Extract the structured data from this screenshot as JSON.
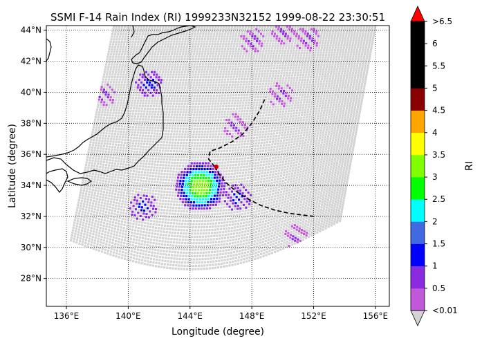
{
  "chart_data": {
    "type": "heatmap",
    "title": "SSMI F-14 Rain Index (RI) 1999233N32152 1999-08-22 23:30:51",
    "xlabel": "Longitude (degree)",
    "ylabel": "Latitude (degree)",
    "xlim": [
      134.7,
      156.9
    ],
    "ylim": [
      26.2,
      44.3
    ],
    "x_ticks": [
      136,
      140,
      144,
      148,
      152,
      156
    ],
    "x_tick_labels": [
      "136°E",
      "140°E",
      "144°E",
      "148°E",
      "152°E",
      "156°E"
    ],
    "y_ticks": [
      28,
      30,
      32,
      34,
      36,
      38,
      40,
      42,
      44
    ],
    "y_tick_labels": [
      "28°N",
      "30°N",
      "32°N",
      "34°N",
      "36°N",
      "38°N",
      "40°N",
      "42°N",
      "44°N"
    ],
    "grid": true,
    "grid_style": "dotted",
    "swath_color": "#d3d3d3",
    "colorbar": {
      "label": "RI",
      "boundaries": [
        0.01,
        0.5,
        1,
        1.5,
        2,
        2.5,
        3,
        3.5,
        4,
        4.5,
        5,
        5.5,
        6,
        6.5
      ],
      "tick_labels": [
        "<0.01",
        "0.5",
        "1",
        "1.5",
        "2",
        "2.5",
        "3",
        "3.5",
        "4",
        "4.5",
        "5",
        "5.5",
        "6",
        ">6.5"
      ],
      "colors": [
        "#c158d9",
        "#8a2be2",
        "#0000ff",
        "#4169e1",
        "#00ffff",
        "#00ff00",
        "#7fff00",
        "#ffff00",
        "#ffa500",
        "#8b0000",
        "#000000",
        "#000000",
        "#000000"
      ],
      "under_color": "#d3d3d3",
      "over_color": "#ff0000"
    },
    "track": {
      "lon": [
        145.6,
        145.9,
        146.3,
        147.0,
        147.8,
        148.6,
        149.5,
        150.4,
        151.2,
        152.0
      ],
      "lat": [
        35.2,
        34.7,
        34.2,
        33.6,
        33.1,
        32.7,
        32.4,
        32.2,
        32.1,
        32.0
      ],
      "lon2": [
        145.6,
        145.2,
        145.3,
        145.9,
        146.7,
        147.4,
        148.0,
        148.5,
        148.9
      ],
      "lat2": [
        35.2,
        35.7,
        36.2,
        36.4,
        36.8,
        37.3,
        38.0,
        38.8,
        39.7
      ],
      "center_lon": 145.7,
      "center_lat": 35.2,
      "center_color": "#cc0000"
    },
    "rain_clusters": [
      {
        "lon": 144.6,
        "lat": 34.0,
        "intensity": "green-core"
      },
      {
        "lon": 147.0,
        "lat": 33.3,
        "intensity": "blue"
      },
      {
        "lon": 150.8,
        "lat": 30.8,
        "intensity": "purple"
      },
      {
        "lon": 140.9,
        "lat": 32.7,
        "intensity": "blue"
      },
      {
        "lon": 138.3,
        "lat": 39.9,
        "intensity": "purple"
      },
      {
        "lon": 141.3,
        "lat": 40.6,
        "intensity": "blue"
      },
      {
        "lon": 146.9,
        "lat": 37.9,
        "intensity": "purple"
      },
      {
        "lon": 149.8,
        "lat": 39.9,
        "intensity": "purple"
      },
      {
        "lon": 151.5,
        "lat": 43.5,
        "intensity": "purple"
      },
      {
        "lon": 150.0,
        "lat": 44.0,
        "intensity": "purple"
      },
      {
        "lon": 148.0,
        "lat": 43.4,
        "intensity": "purple"
      }
    ]
  }
}
